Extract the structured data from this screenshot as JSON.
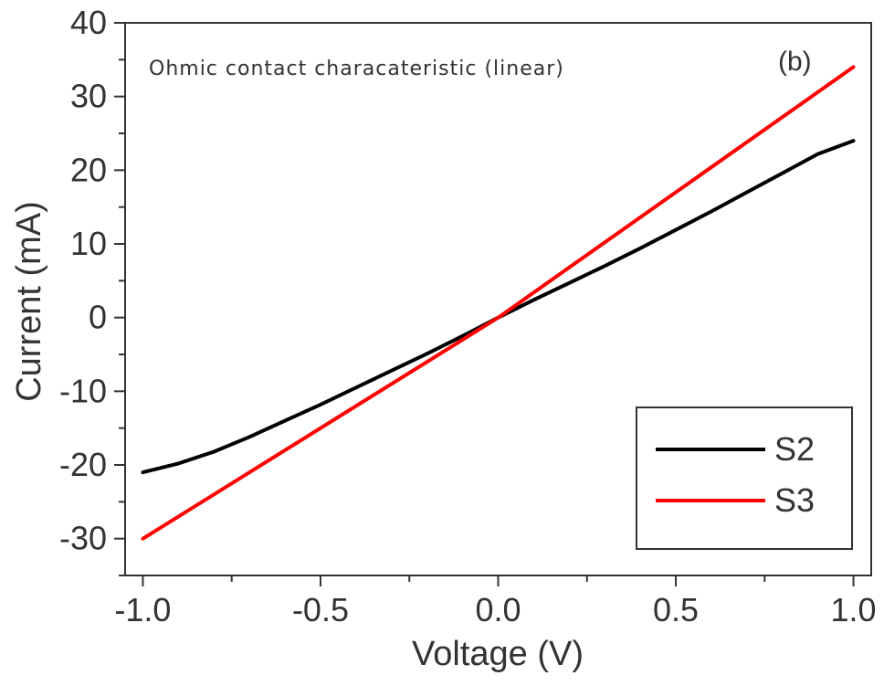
{
  "chart_data": {
    "type": "line",
    "title": "",
    "annotation": "Ohmic contact characateristic (linear)",
    "panel_label": "(b)",
    "xlabel": "Voltage (V)",
    "ylabel": "Current (mA)",
    "xlim": [
      -1.05,
      1.05
    ],
    "ylim": [
      -35,
      40
    ],
    "x_ticks": [
      -1.0,
      -0.5,
      0.0,
      0.5,
      1.0
    ],
    "x_tick_labels": [
      "-1.0",
      "-0.5",
      "0.0",
      "0.5",
      "1.0"
    ],
    "y_ticks": [
      -30,
      -20,
      -10,
      0,
      10,
      20,
      30,
      40
    ],
    "y_tick_labels": [
      "-30",
      "-20",
      "-10",
      "0",
      "10",
      "20",
      "30",
      "40"
    ],
    "grid": false,
    "legend_position": "bottom-right",
    "series": [
      {
        "name": "S2",
        "color": "#000000",
        "x": [
          -1.0,
          -0.9,
          -0.8,
          -0.7,
          -0.6,
          -0.5,
          -0.4,
          -0.3,
          -0.2,
          -0.1,
          0.0,
          0.1,
          0.2,
          0.3,
          0.4,
          0.5,
          0.6,
          0.7,
          0.8,
          0.9,
          1.0
        ],
        "y": [
          -21,
          -19.8,
          -18.2,
          -16.2,
          -14.0,
          -11.8,
          -9.5,
          -7.2,
          -4.9,
          -2.5,
          0,
          2.4,
          4.7,
          7.0,
          9.4,
          11.9,
          14.4,
          17.0,
          19.6,
          22.2,
          24
        ]
      },
      {
        "name": "S3",
        "color": "#ff0000",
        "x": [
          -1.0,
          -0.5,
          0.0,
          0.5,
          1.0
        ],
        "y": [
          -30,
          -15,
          0,
          17,
          34
        ]
      }
    ]
  }
}
